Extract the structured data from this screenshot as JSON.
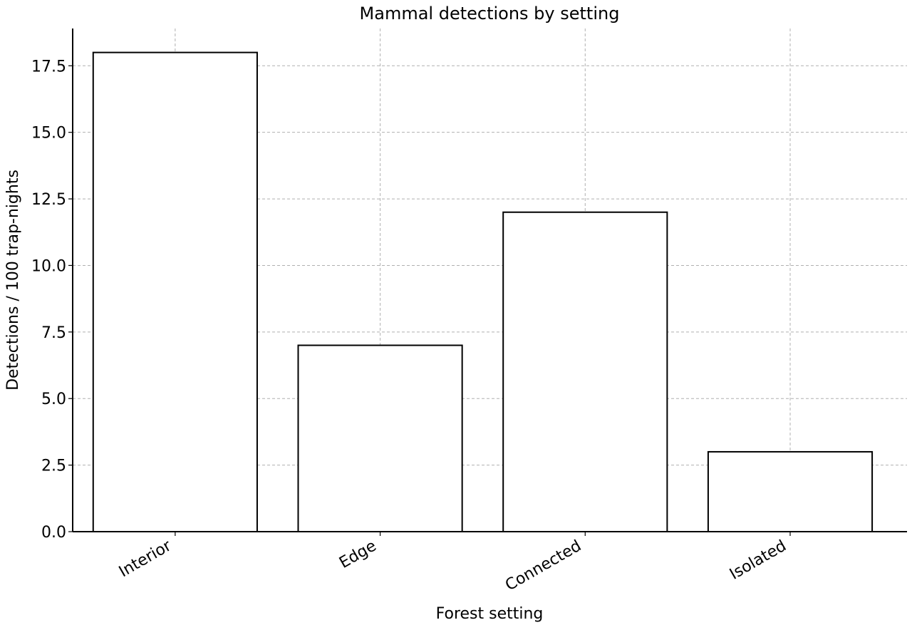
{
  "chart_data": {
    "type": "bar",
    "title": "Mammal detections by setting",
    "xlabel": "Forest setting",
    "ylabel": "Detections / 100 trap-nights",
    "categories": [
      "Interior",
      "Edge",
      "Connected",
      "Isolated"
    ],
    "values": [
      18,
      7,
      12,
      3
    ],
    "ylim": [
      0,
      18.9
    ],
    "yticks": [
      0.0,
      2.5,
      5.0,
      7.5,
      10.0,
      12.5,
      15.0,
      17.5
    ],
    "ytick_labels": [
      "0.0",
      "2.5",
      "5.0",
      "7.5",
      "10.0",
      "12.5",
      "15.0",
      "17.5"
    ],
    "grid": true,
    "bar_fill": "#ffffff",
    "bar_edge": "#000000",
    "grid_color": "#b0b0b0"
  }
}
